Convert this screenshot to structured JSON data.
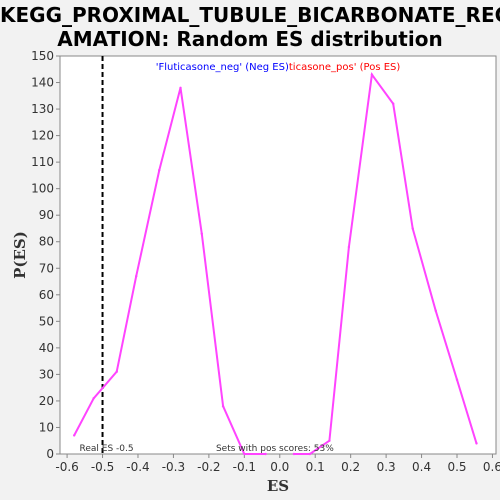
{
  "title_line1": "KEGG_PROXIMAL_TUBULE_BICARBONATE_RECL",
  "title_line2": "AMATION: Random ES distribution",
  "chart_data": {
    "type": "line",
    "title": "KEGG_PROXIMAL_TUBULE_BICARBONATE_RECLAMATION: Random ES distribution",
    "xlabel": "ES",
    "ylabel": "P(ES)",
    "xlim": [
      -0.62,
      0.61
    ],
    "ylim": [
      0,
      150
    ],
    "xticks": [
      -0.6,
      -0.5,
      -0.4,
      -0.3,
      -0.2,
      -0.1,
      0.0,
      0.1,
      0.2,
      0.3,
      0.4,
      0.5,
      0.6
    ],
    "xtick_labels": [
      "-0.6",
      "-0.5",
      "-0.4",
      "-0.3",
      "-0.2",
      "-0.1",
      "0.0",
      "0.1",
      "0.2",
      "0.3",
      "0.4",
      "0.5",
      "0.6"
    ],
    "yticks": [
      0,
      10,
      20,
      30,
      40,
      50,
      60,
      70,
      80,
      90,
      100,
      110,
      120,
      130,
      140,
      150
    ],
    "ytick_labels": [
      "0",
      "10",
      "20",
      "30",
      "40",
      "50",
      "60",
      "70",
      "80",
      "90",
      "100",
      "110",
      "120",
      "130",
      "140",
      "150"
    ],
    "series": [
      {
        "name": "'Fluticasone_neg' (Neg ES)",
        "color": "#ff44ff",
        "x": [
          -0.58,
          -0.525,
          -0.46,
          -0.405,
          -0.34,
          -0.28,
          -0.22,
          -0.16,
          -0.1,
          -0.04
        ],
        "y": [
          7,
          21,
          31,
          67,
          107,
          138,
          83,
          18,
          0,
          0
        ]
      },
      {
        "name": "ticasone_pos' (Pos ES)",
        "color": "#ff44ff",
        "x": [
          0.04,
          0.085,
          0.14,
          0.195,
          0.26,
          0.32,
          0.375,
          0.44,
          0.5,
          0.555
        ],
        "y": [
          0,
          0,
          5,
          78,
          143,
          132,
          85,
          54,
          28,
          4
        ]
      }
    ],
    "reference_line": {
      "x": -0.5,
      "label": "Real ES -0.5"
    },
    "annotations": [
      "Sets with pos scores: 53%"
    ],
    "legend": [
      {
        "label": "'Fluticasone_neg' (Neg ES)",
        "color": "#0000ff"
      },
      {
        "label": "ticasone_pos' (Pos ES)",
        "color": "#ff0000"
      }
    ],
    "legend_placement": "top-center",
    "grid": false
  }
}
